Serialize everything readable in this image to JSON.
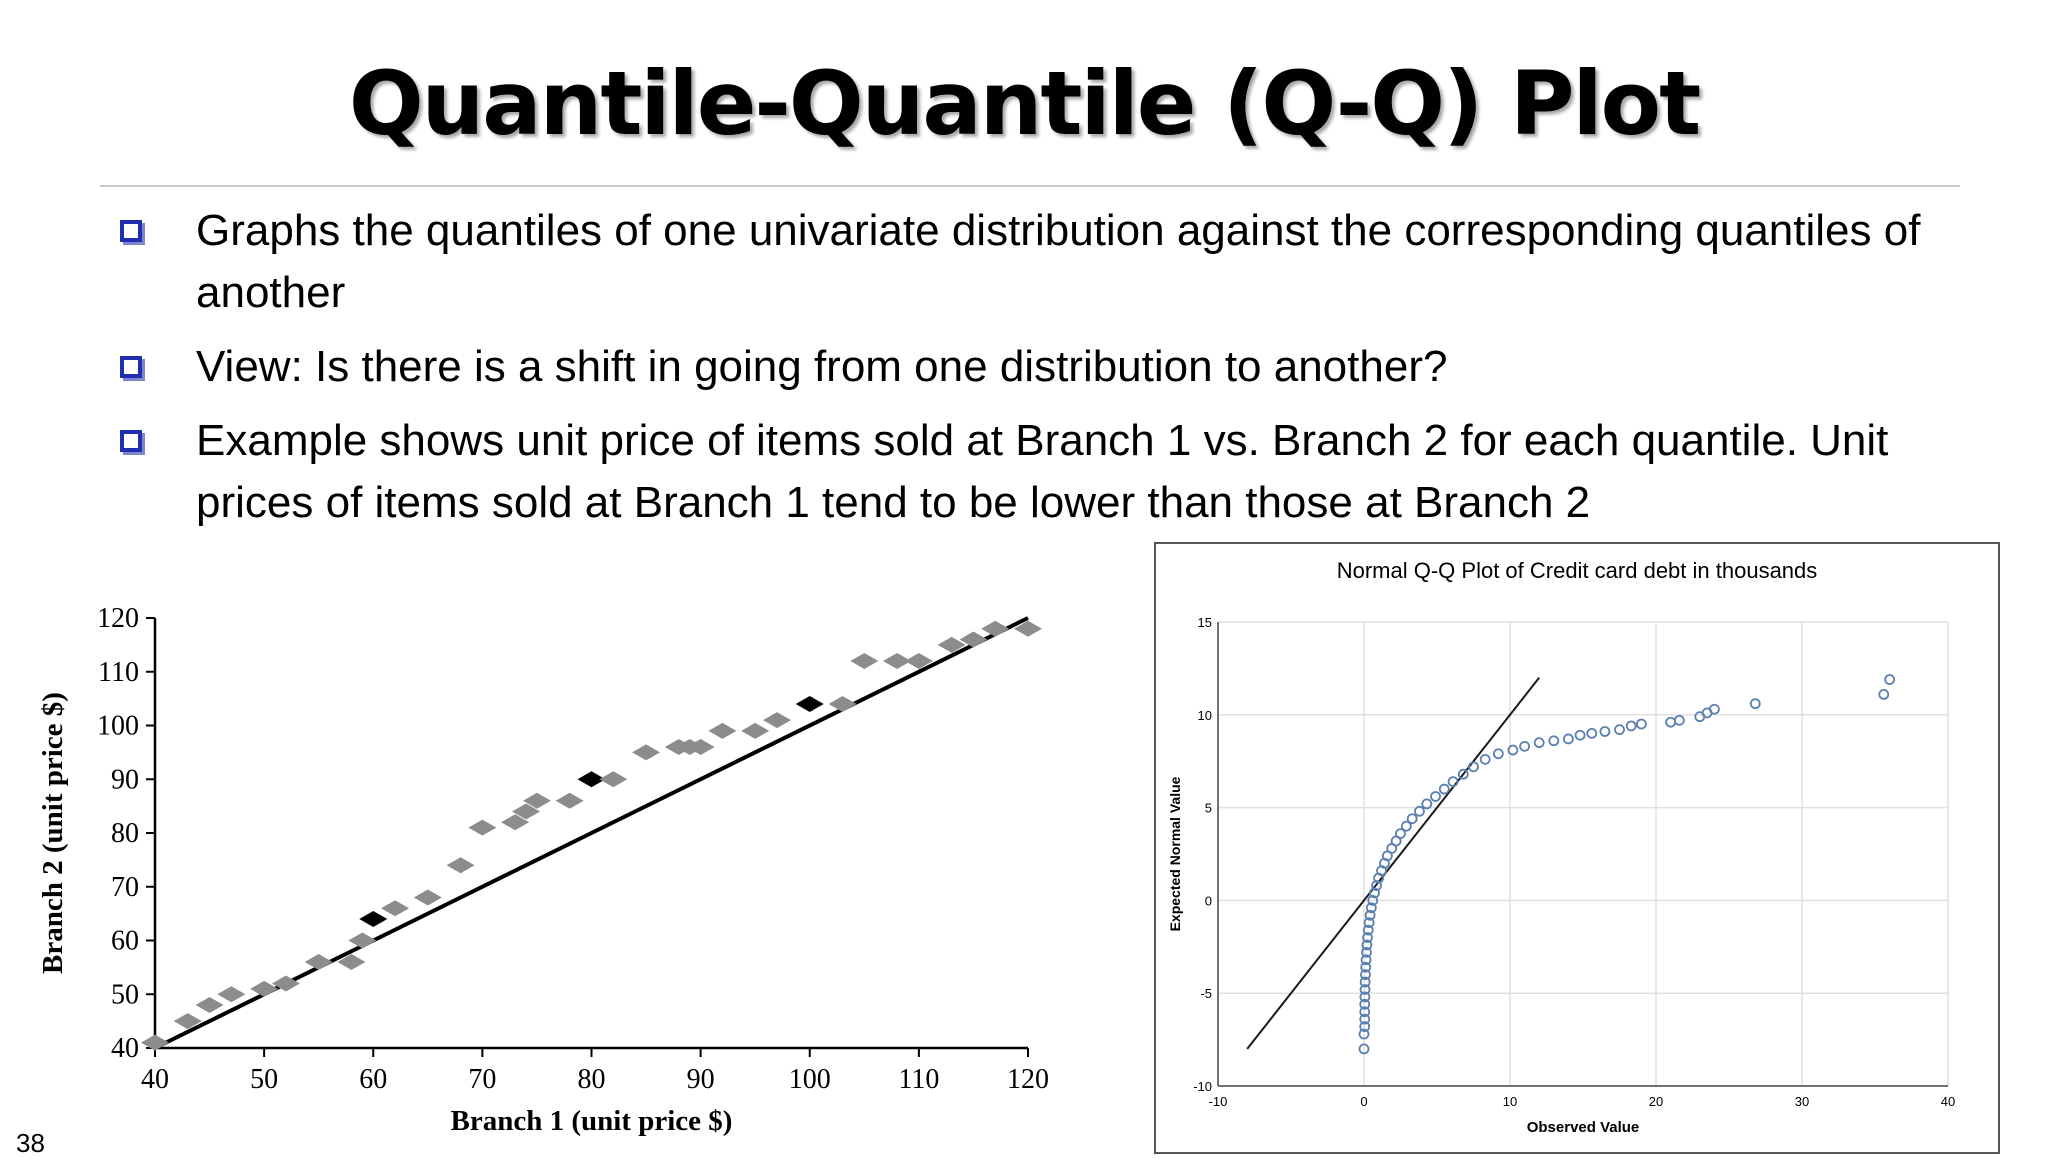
{
  "slide": {
    "title": "Quantile-Quantile (Q-Q) Plot",
    "bullets": [
      "Graphs the quantiles of one univariate distribution against the corresponding quantiles of another",
      "View: Is there is a shift in going from one distribution to another?",
      "Example shows unit price of items sold at Branch 1 vs. Branch 2 for each quantile. Unit prices of items sold at Branch 1 tend to be lower than those at Branch 2"
    ],
    "page_number": "38"
  },
  "colors": {
    "bullet": "#1f2fb0",
    "left_points": "#8c8c8c",
    "left_points_highlight": "#000000",
    "right_points": "#5b7fb0",
    "right_line": "#1a1a1a",
    "right_grid": "#e0e0e0"
  },
  "chart_data": [
    {
      "type": "scatter",
      "title": "",
      "xlabel": "Branch 1 (unit price $)",
      "ylabel": "Branch 2 (unit price $)",
      "xlim": [
        40,
        120
      ],
      "ylim": [
        40,
        120
      ],
      "xticks": [
        40,
        50,
        60,
        70,
        80,
        90,
        100,
        110,
        120
      ],
      "yticks": [
        40,
        50,
        60,
        70,
        80,
        90,
        100,
        110,
        120
      ],
      "grid": false,
      "reference_line": {
        "from": [
          40,
          40
        ],
        "to": [
          120,
          120
        ]
      },
      "points": [
        [
          40,
          41
        ],
        [
          43,
          45
        ],
        [
          45,
          48
        ],
        [
          47,
          50
        ],
        [
          50,
          51
        ],
        [
          52,
          52
        ],
        [
          55,
          56
        ],
        [
          58,
          56
        ],
        [
          59,
          60
        ],
        [
          60,
          64
        ],
        [
          62,
          66
        ],
        [
          65,
          68
        ],
        [
          68,
          74
        ],
        [
          70,
          81
        ],
        [
          73,
          82
        ],
        [
          74,
          84
        ],
        [
          75,
          86
        ],
        [
          78,
          86
        ],
        [
          80,
          90
        ],
        [
          82,
          90
        ],
        [
          85,
          95
        ],
        [
          88,
          96
        ],
        [
          89,
          96
        ],
        [
          90,
          96
        ],
        [
          92,
          99
        ],
        [
          95,
          99
        ],
        [
          97,
          101
        ],
        [
          100,
          104
        ],
        [
          103,
          104
        ],
        [
          105,
          112
        ],
        [
          108,
          112
        ],
        [
          110,
          112
        ],
        [
          113,
          115
        ],
        [
          115,
          116
        ],
        [
          117,
          118
        ],
        [
          120,
          118
        ]
      ],
      "highlighted_points": [
        [
          60,
          64
        ],
        [
          80,
          90
        ],
        [
          100,
          104
        ]
      ]
    },
    {
      "type": "scatter",
      "title": "Normal Q-Q Plot of Credit card debt in thousands",
      "xlabel": "Observed Value",
      "ylabel": "Expected Normal Value",
      "xlim": [
        -10,
        40
      ],
      "ylim": [
        -10,
        15
      ],
      "xticks": [
        -10,
        0,
        10,
        20,
        30,
        40
      ],
      "yticks": [
        -10,
        -5,
        0,
        5,
        10,
        15
      ],
      "grid": true,
      "reference_line": {
        "from": [
          -8,
          -8
        ],
        "to": [
          12,
          12
        ]
      },
      "points": [
        [
          0.0,
          -8.0
        ],
        [
          0.0,
          -7.2
        ],
        [
          0.05,
          -6.8
        ],
        [
          0.05,
          -6.4
        ],
        [
          0.05,
          -6.0
        ],
        [
          0.05,
          -5.6
        ],
        [
          0.06,
          -5.2
        ],
        [
          0.07,
          -4.8
        ],
        [
          0.08,
          -4.4
        ],
        [
          0.1,
          -4.0
        ],
        [
          0.12,
          -3.6
        ],
        [
          0.14,
          -3.2
        ],
        [
          0.17,
          -2.8
        ],
        [
          0.2,
          -2.4
        ],
        [
          0.24,
          -2.0
        ],
        [
          0.29,
          -1.6
        ],
        [
          0.35,
          -1.2
        ],
        [
          0.42,
          -0.8
        ],
        [
          0.5,
          -0.4
        ],
        [
          0.6,
          0.0
        ],
        [
          0.72,
          0.4
        ],
        [
          0.86,
          0.8
        ],
        [
          1.0,
          1.2
        ],
        [
          1.2,
          1.6
        ],
        [
          1.4,
          2.0
        ],
        [
          1.6,
          2.4
        ],
        [
          1.9,
          2.8
        ],
        [
          2.2,
          3.2
        ],
        [
          2.5,
          3.6
        ],
        [
          2.9,
          4.0
        ],
        [
          3.3,
          4.4
        ],
        [
          3.8,
          4.8
        ],
        [
          4.3,
          5.2
        ],
        [
          4.9,
          5.6
        ],
        [
          5.5,
          6.0
        ],
        [
          6.1,
          6.4
        ],
        [
          6.8,
          6.8
        ],
        [
          7.5,
          7.2
        ],
        [
          8.3,
          7.6
        ],
        [
          9.2,
          7.9
        ],
        [
          10.2,
          8.1
        ],
        [
          11.0,
          8.3
        ],
        [
          12.0,
          8.5
        ],
        [
          13.0,
          8.6
        ],
        [
          14.0,
          8.7
        ],
        [
          14.8,
          8.9
        ],
        [
          15.6,
          9.0
        ],
        [
          16.5,
          9.1
        ],
        [
          17.5,
          9.2
        ],
        [
          18.3,
          9.4
        ],
        [
          19.0,
          9.5
        ],
        [
          21.0,
          9.6
        ],
        [
          21.6,
          9.7
        ],
        [
          23.0,
          9.9
        ],
        [
          23.5,
          10.1
        ],
        [
          24.0,
          10.3
        ],
        [
          26.8,
          10.6
        ],
        [
          35.6,
          11.1
        ],
        [
          36.0,
          11.9
        ]
      ]
    }
  ]
}
